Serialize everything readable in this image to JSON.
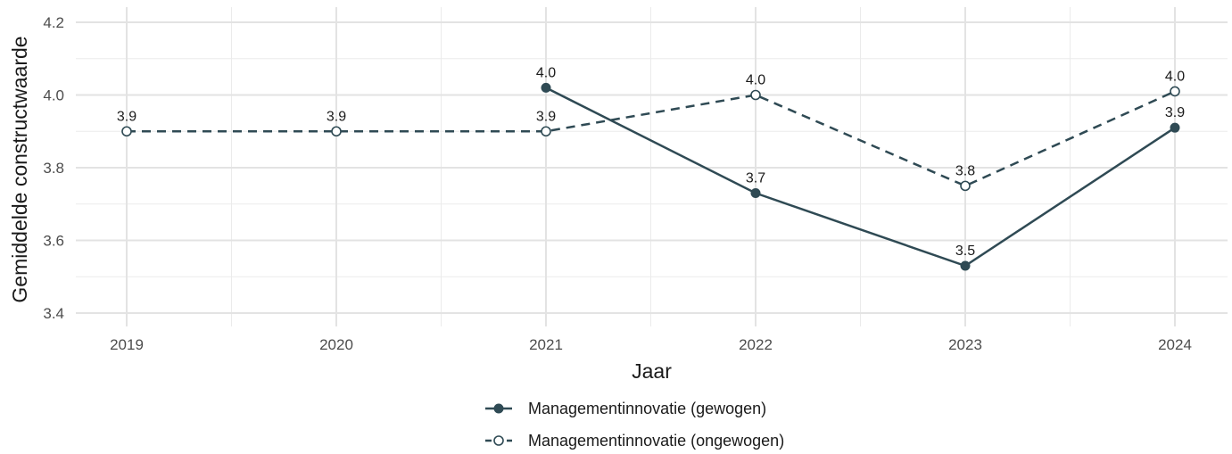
{
  "chart_data": {
    "type": "line",
    "title": "",
    "xlabel": "Jaar",
    "ylabel": "Gemiddelde constructwaarde",
    "categories": [
      "2019",
      "2020",
      "2021",
      "2022",
      "2023",
      "2024"
    ],
    "ylim": [
      3.4,
      4.2
    ],
    "yticks": [
      "3.4",
      "3.6",
      "3.8",
      "4.0",
      "4.2"
    ],
    "grid": true,
    "legend_position": "bottom",
    "series": [
      {
        "name": "Managementinnovatie (gewogen)",
        "values": [
          null,
          null,
          4.02,
          3.73,
          3.53,
          3.91
        ],
        "labels": [
          null,
          null,
          "4.0",
          "3.7",
          "3.5",
          "3.9"
        ],
        "line_style": "solid",
        "marker": "filled-circle",
        "color": "#2f4a54"
      },
      {
        "name": "Managementinnovatie (ongewogen)",
        "values": [
          3.9,
          3.9,
          3.9,
          4.0,
          3.75,
          4.01
        ],
        "labels": [
          "3.9",
          "3.9",
          "3.9",
          "4.0",
          "3.8",
          "4.0"
        ],
        "line_style": "dashed",
        "marker": "open-circle",
        "color": "#2f4a54"
      }
    ]
  }
}
